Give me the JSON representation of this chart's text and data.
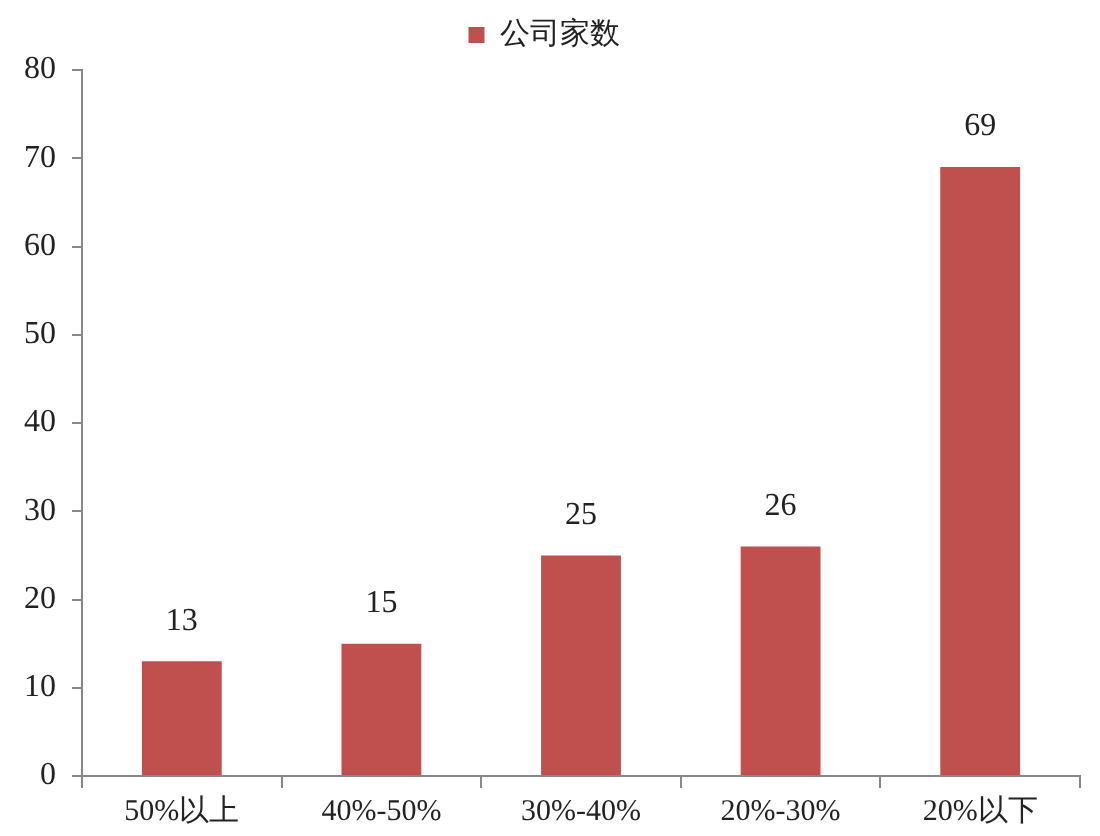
{
  "chart_data": {
    "type": "bar",
    "categories": [
      "50%以上",
      "40%-50%",
      "30%-40%",
      "20%-30%",
      "20%以下"
    ],
    "series": [
      {
        "name": "公司家数",
        "color": "#c0504d",
        "values": [
          13,
          15,
          25,
          26,
          69
        ]
      }
    ],
    "ylim": [
      0,
      80
    ],
    "yticks": [
      0,
      10,
      20,
      30,
      40,
      50,
      60,
      70,
      80
    ],
    "grid": false,
    "legend": "top",
    "data_labels": true
  }
}
